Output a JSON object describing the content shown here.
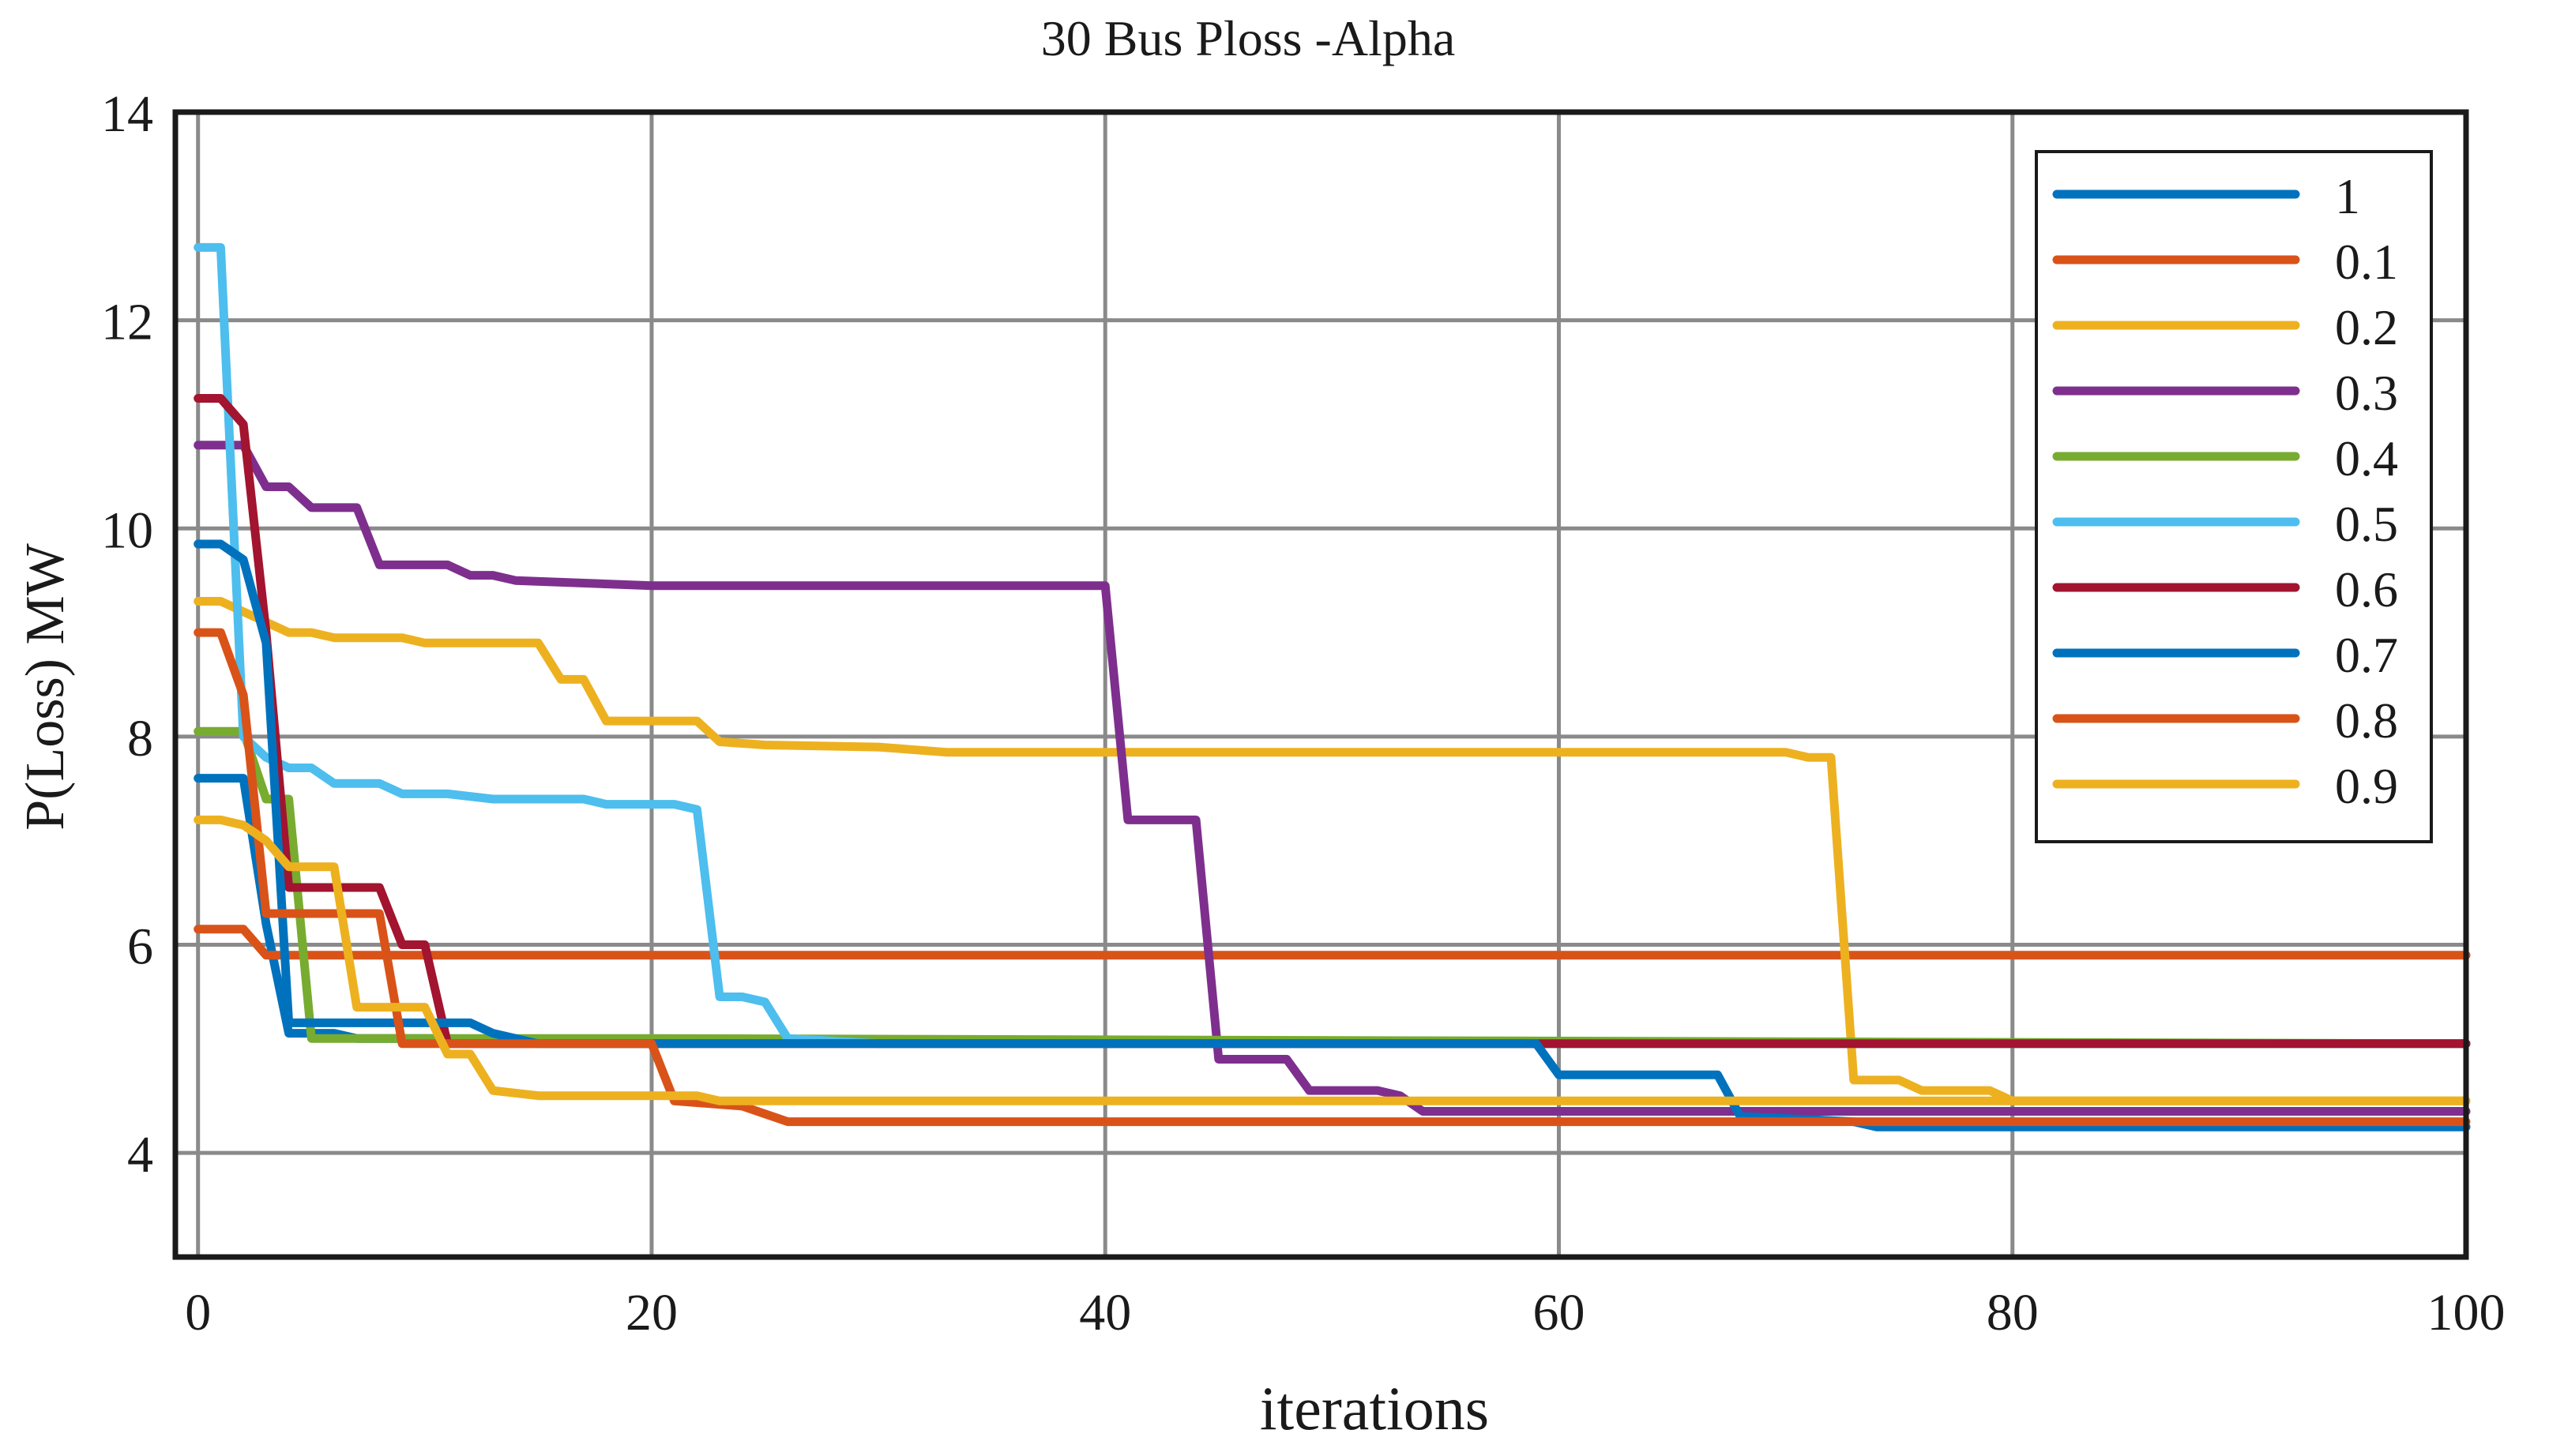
{
  "chart_data": {
    "type": "line",
    "title": "30 Bus Ploss -Alpha",
    "xlabel": "iterations",
    "ylabel": "P(Loss) MW",
    "xlim": [
      -1,
      100
    ],
    "ylim": [
      3,
      14
    ],
    "xticks": [
      0,
      20,
      40,
      60,
      80,
      100
    ],
    "yticks": [
      4,
      6,
      8,
      10,
      12,
      14
    ],
    "xtick_labels": [
      "0",
      "20",
      "40",
      "60",
      "80",
      "100"
    ],
    "ytick_labels": [
      "4",
      "6",
      "8",
      "10",
      "12",
      "14"
    ],
    "grid": true,
    "legend_position": "top-right",
    "series": [
      {
        "name": "1",
        "color": "#0072BD",
        "points": [
          [
            0,
            7.6
          ],
          [
            1,
            7.6
          ],
          [
            2,
            7.6
          ],
          [
            3,
            6.2
          ],
          [
            4,
            5.15
          ],
          [
            5,
            5.15
          ],
          [
            6,
            5.15
          ],
          [
            7,
            5.1
          ],
          [
            10,
            5.1
          ],
          [
            50,
            5.05
          ],
          [
            100,
            5.05
          ]
        ]
      },
      {
        "name": "0.1",
        "color": "#D95319",
        "points": [
          [
            0,
            6.15
          ],
          [
            1,
            6.15
          ],
          [
            2,
            6.15
          ],
          [
            3,
            5.9
          ],
          [
            100,
            5.9
          ]
        ]
      },
      {
        "name": "0.2",
        "color": "#EDB120",
        "points": [
          [
            0,
            9.3
          ],
          [
            1,
            9.3
          ],
          [
            2,
            9.2
          ],
          [
            3,
            9.1
          ],
          [
            4,
            9.0
          ],
          [
            5,
            9.0
          ],
          [
            6,
            8.95
          ],
          [
            9,
            8.95
          ],
          [
            10,
            8.9
          ],
          [
            15,
            8.9
          ],
          [
            16,
            8.55
          ],
          [
            17,
            8.55
          ],
          [
            18,
            8.15
          ],
          [
            22,
            8.15
          ],
          [
            23,
            7.95
          ],
          [
            25,
            7.92
          ],
          [
            30,
            7.9
          ],
          [
            33,
            7.85
          ],
          [
            70,
            7.85
          ],
          [
            71,
            7.8
          ],
          [
            72,
            7.8
          ],
          [
            73,
            4.7
          ],
          [
            75,
            4.7
          ],
          [
            76,
            4.6
          ],
          [
            79,
            4.6
          ],
          [
            80,
            4.5
          ],
          [
            100,
            4.5
          ]
        ]
      },
      {
        "name": "0.3",
        "color": "#7E2F8E",
        "points": [
          [
            0,
            10.8
          ],
          [
            1,
            10.8
          ],
          [
            2,
            10.8
          ],
          [
            3,
            10.4
          ],
          [
            4,
            10.4
          ],
          [
            5,
            10.2
          ],
          [
            7,
            10.2
          ],
          [
            8,
            9.65
          ],
          [
            11,
            9.65
          ],
          [
            12,
            9.55
          ],
          [
            13,
            9.55
          ],
          [
            14,
            9.5
          ],
          [
            20,
            9.45
          ],
          [
            40,
            9.45
          ],
          [
            41,
            7.2
          ],
          [
            44,
            7.2
          ],
          [
            45,
            4.9
          ],
          [
            48,
            4.9
          ],
          [
            49,
            4.6
          ],
          [
            52,
            4.6
          ],
          [
            53,
            4.55
          ],
          [
            54,
            4.4
          ],
          [
            100,
            4.4
          ]
        ]
      },
      {
        "name": "0.4",
        "color": "#77AC30",
        "points": [
          [
            0,
            8.05
          ],
          [
            1,
            8.05
          ],
          [
            2,
            8.05
          ],
          [
            3,
            7.4
          ],
          [
            4,
            7.4
          ],
          [
            5,
            5.1
          ],
          [
            20,
            5.1
          ],
          [
            100,
            5.05
          ]
        ]
      },
      {
        "name": "0.5",
        "color": "#4DBEEE",
        "points": [
          [
            0,
            12.7
          ],
          [
            1,
            12.7
          ],
          [
            2,
            8.0
          ],
          [
            3,
            7.8
          ],
          [
            4,
            7.7
          ],
          [
            5,
            7.7
          ],
          [
            6,
            7.55
          ],
          [
            8,
            7.55
          ],
          [
            9,
            7.45
          ],
          [
            11,
            7.45
          ],
          [
            13,
            7.4
          ],
          [
            14,
            7.4
          ],
          [
            17,
            7.4
          ],
          [
            18,
            7.35
          ],
          [
            21,
            7.35
          ],
          [
            22,
            7.3
          ],
          [
            23,
            5.5
          ],
          [
            24,
            5.5
          ],
          [
            25,
            5.45
          ],
          [
            26,
            5.1
          ],
          [
            30,
            5.05
          ],
          [
            100,
            5.05
          ]
        ]
      },
      {
        "name": "0.6",
        "color": "#A2142F",
        "points": [
          [
            0,
            11.25
          ],
          [
            1,
            11.25
          ],
          [
            2,
            11.0
          ],
          [
            3,
            9.0
          ],
          [
            4,
            6.55
          ],
          [
            8,
            6.55
          ],
          [
            9,
            6.0
          ],
          [
            10,
            6.0
          ],
          [
            11,
            5.05
          ],
          [
            100,
            5.05
          ]
        ]
      },
      {
        "name": "0.7",
        "color": "#0072BD",
        "points": [
          [
            0,
            9.85
          ],
          [
            1,
            9.85
          ],
          [
            2,
            9.7
          ],
          [
            3,
            8.9
          ],
          [
            4,
            5.25
          ],
          [
            12,
            5.25
          ],
          [
            13,
            5.15
          ],
          [
            15,
            5.05
          ],
          [
            59,
            5.05
          ],
          [
            60,
            4.75
          ],
          [
            67,
            4.75
          ],
          [
            68,
            4.35
          ],
          [
            73,
            4.3
          ],
          [
            74,
            4.25
          ],
          [
            100,
            4.25
          ]
        ]
      },
      {
        "name": "0.8",
        "color": "#D95319",
        "points": [
          [
            0,
            9.0
          ],
          [
            1,
            9.0
          ],
          [
            2,
            8.4
          ],
          [
            3,
            6.3
          ],
          [
            8,
            6.3
          ],
          [
            9,
            5.05
          ],
          [
            20,
            5.05
          ],
          [
            21,
            4.5
          ],
          [
            24,
            4.45
          ],
          [
            26,
            4.3
          ],
          [
            100,
            4.3
          ]
        ]
      },
      {
        "name": "0.9",
        "color": "#EDB120",
        "points": [
          [
            0,
            7.2
          ],
          [
            1,
            7.2
          ],
          [
            2,
            7.15
          ],
          [
            3,
            7.0
          ],
          [
            4,
            6.75
          ],
          [
            6,
            6.75
          ],
          [
            7,
            5.4
          ],
          [
            10,
            5.4
          ],
          [
            11,
            4.95
          ],
          [
            12,
            4.95
          ],
          [
            13,
            4.6
          ],
          [
            15,
            4.55
          ],
          [
            22,
            4.55
          ],
          [
            23,
            4.5
          ],
          [
            100,
            4.5
          ]
        ]
      }
    ]
  }
}
